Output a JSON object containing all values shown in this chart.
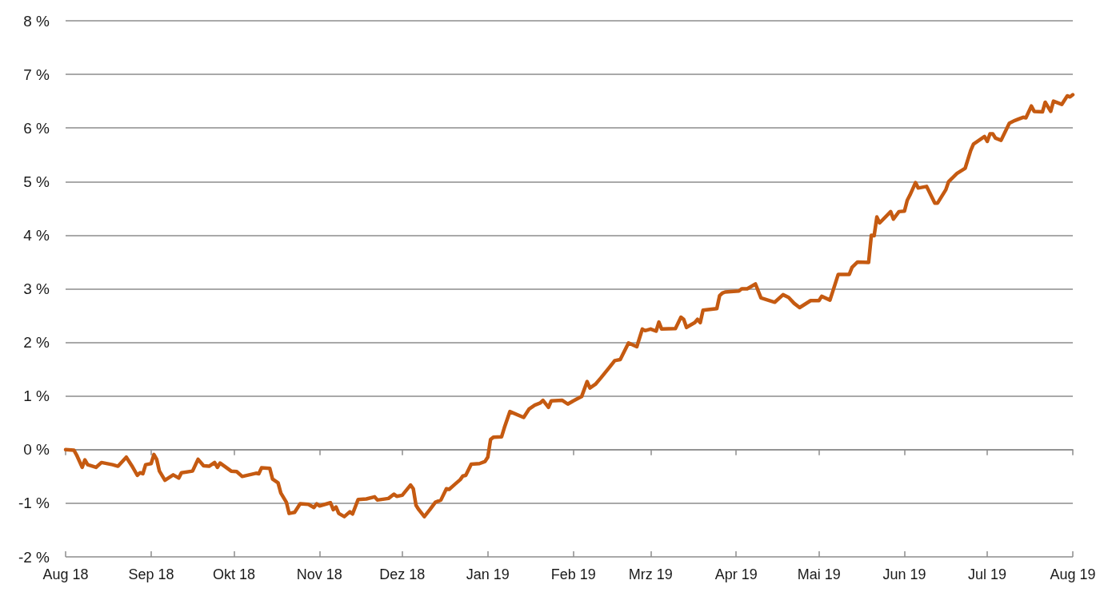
{
  "chart_data": {
    "type": "line",
    "color": "#c55a11",
    "x": [
      "2018-08-01",
      "2018-08-04",
      "2018-08-05",
      "2018-08-07",
      "2018-08-08",
      "2018-08-09",
      "2018-08-12",
      "2018-08-14",
      "2018-08-18",
      "2018-08-20",
      "2018-08-23",
      "2018-08-25",
      "2018-08-27",
      "2018-08-28",
      "2018-08-29",
      "2018-08-30",
      "2018-09-01",
      "2018-09-02",
      "2018-09-03",
      "2018-09-04",
      "2018-09-06",
      "2018-09-09",
      "2018-09-11",
      "2018-09-12",
      "2018-09-16",
      "2018-09-18",
      "2018-09-20",
      "2018-09-22",
      "2018-09-24",
      "2018-09-25",
      "2018-09-26",
      "2018-09-30",
      "2018-10-02",
      "2018-10-04",
      "2018-10-09",
      "2018-10-10",
      "2018-10-11",
      "2018-10-14",
      "2018-10-15",
      "2018-10-17",
      "2018-10-18",
      "2018-10-20",
      "2018-10-21",
      "2018-10-23",
      "2018-10-25",
      "2018-10-28",
      "2018-10-30",
      "2018-10-31",
      "2018-11-01",
      "2018-11-05",
      "2018-11-06",
      "2018-11-07",
      "2018-11-08",
      "2018-11-10",
      "2018-11-12",
      "2018-11-13",
      "2018-11-15",
      "2018-11-18",
      "2018-11-21",
      "2018-11-22",
      "2018-11-26",
      "2018-11-28",
      "2018-11-29",
      "2018-12-01",
      "2018-12-04",
      "2018-12-05",
      "2018-12-06",
      "2018-12-07",
      "2018-12-09",
      "2018-12-11",
      "2018-12-13",
      "2018-12-15",
      "2018-12-17",
      "2018-12-18",
      "2018-12-20",
      "2018-12-22",
      "2018-12-23",
      "2018-12-24",
      "2018-12-26",
      "2018-12-29",
      "2018-12-31",
      "2019-01-01",
      "2019-01-02",
      "2019-01-03",
      "2019-01-06",
      "2019-01-07",
      "2019-01-09",
      "2019-01-14",
      "2019-01-16",
      "2019-01-18",
      "2019-01-20",
      "2019-01-21",
      "2019-01-23",
      "2019-01-24",
      "2019-01-28",
      "2019-01-30",
      "2019-02-01",
      "2019-02-04",
      "2019-02-06",
      "2019-02-07",
      "2019-02-09",
      "2019-02-11",
      "2019-02-14",
      "2019-02-16",
      "2019-02-18",
      "2019-02-21",
      "2019-02-24",
      "2019-02-26",
      "2019-02-27",
      "2019-03-01",
      "2019-03-03",
      "2019-03-04",
      "2019-03-05",
      "2019-03-10",
      "2019-03-12",
      "2019-03-13",
      "2019-03-14",
      "2019-03-17",
      "2019-03-18",
      "2019-03-19",
      "2019-03-20",
      "2019-03-25",
      "2019-03-26",
      "2019-03-27",
      "2019-03-28",
      "2019-04-02",
      "2019-04-03",
      "2019-04-05",
      "2019-04-08",
      "2019-04-10",
      "2019-04-15",
      "2019-04-18",
      "2019-04-20",
      "2019-04-22",
      "2019-04-24",
      "2019-04-28",
      "2019-05-01",
      "2019-05-02",
      "2019-05-05",
      "2019-05-07",
      "2019-05-08",
      "2019-05-12",
      "2019-05-13",
      "2019-05-15",
      "2019-05-19",
      "2019-05-20",
      "2019-05-21",
      "2019-05-22",
      "2019-05-23",
      "2019-05-27",
      "2019-05-28",
      "2019-05-30",
      "2019-06-01",
      "2019-06-02",
      "2019-06-03",
      "2019-06-05",
      "2019-06-06",
      "2019-06-09",
      "2019-06-12",
      "2019-06-13",
      "2019-06-16",
      "2019-06-17",
      "2019-06-20",
      "2019-06-23",
      "2019-06-25",
      "2019-06-26",
      "2019-06-30",
      "2019-07-01",
      "2019-07-02",
      "2019-07-03",
      "2019-07-04",
      "2019-07-06",
      "2019-07-09",
      "2019-07-11",
      "2019-07-14",
      "2019-07-15",
      "2019-07-17",
      "2019-07-18",
      "2019-07-21",
      "2019-07-22",
      "2019-07-24",
      "2019-07-25",
      "2019-07-28",
      "2019-07-30",
      "2019-07-31",
      "2019-08-01"
    ],
    "values": [
      0,
      -0.01,
      -0.1,
      -0.33,
      -0.19,
      -0.28,
      -0.33,
      -0.24,
      -0.28,
      -0.31,
      -0.14,
      -0.3,
      -0.48,
      -0.43,
      -0.45,
      -0.28,
      -0.26,
      -0.09,
      -0.18,
      -0.4,
      -0.57,
      -0.47,
      -0.53,
      -0.43,
      -0.4,
      -0.18,
      -0.3,
      -0.31,
      -0.24,
      -0.33,
      -0.25,
      -0.4,
      -0.41,
      -0.5,
      -0.44,
      -0.45,
      -0.34,
      -0.35,
      -0.55,
      -0.62,
      -0.81,
      -0.98,
      -1.19,
      -1.17,
      -1.01,
      -1.02,
      -1.08,
      -1.01,
      -1.05,
      -0.99,
      -1.12,
      -1.07,
      -1.19,
      -1.25,
      -1.16,
      -1.2,
      -0.93,
      -0.92,
      -0.88,
      -0.94,
      -0.91,
      -0.83,
      -0.87,
      -0.85,
      -0.66,
      -0.73,
      -1.04,
      -1.12,
      -1.25,
      -1.12,
      -0.98,
      -0.94,
      -0.73,
      -0.74,
      -0.65,
      -0.56,
      -0.49,
      -0.48,
      -0.27,
      -0.26,
      -0.22,
      -0.14,
      0.19,
      0.23,
      0.24,
      0.41,
      0.71,
      0.6,
      0.76,
      0.83,
      0.87,
      0.92,
      0.79,
      0.91,
      0.92,
      0.85,
      0.91,
      0.99,
      1.27,
      1.15,
      1.22,
      1.34,
      1.53,
      1.66,
      1.68,
      1.99,
      1.92,
      2.25,
      2.22,
      2.25,
      2.21,
      2.38,
      2.25,
      2.26,
      2.47,
      2.43,
      2.28,
      2.37,
      2.43,
      2.37,
      2.6,
      2.63,
      2.87,
      2.92,
      2.94,
      2.96,
      3.0,
      3.0,
      3.09,
      2.83,
      2.75,
      2.89,
      2.84,
      2.73,
      2.65,
      2.78,
      2.78,
      2.86,
      2.79,
      3.11,
      3.27,
      3.27,
      3.4,
      3.5,
      3.49,
      4.0,
      3.99,
      4.34,
      4.23,
      4.44,
      4.3,
      4.44,
      4.45,
      4.65,
      4.75,
      4.98,
      4.88,
      4.91,
      4.6,
      4.6,
      4.85,
      5.0,
      5.15,
      5.25,
      5.58,
      5.7,
      5.84,
      5.75,
      5.89,
      5.89,
      5.81,
      5.77,
      6.09,
      6.14,
      6.2,
      6.19,
      6.41,
      6.31,
      6.3,
      6.48,
      6.31,
      6.5,
      6.44,
      6.6,
      6.58,
      6.62
    ],
    "xlim": [
      "2018-08-01",
      "2019-08-01"
    ],
    "xticks": [
      {
        "value": "2018-08-01",
        "label": "Aug 18"
      },
      {
        "value": "2018-09-01",
        "label": "Sep 18"
      },
      {
        "value": "2018-10-01",
        "label": "Okt 18"
      },
      {
        "value": "2018-11-01",
        "label": "Nov 18"
      },
      {
        "value": "2018-12-01",
        "label": "Dez 18"
      },
      {
        "value": "2019-01-01",
        "label": "Jan 19"
      },
      {
        "value": "2019-02-01",
        "label": "Feb 19"
      },
      {
        "value": "2019-03-01",
        "label": "Mrz 19"
      },
      {
        "value": "2019-04-01",
        "label": "Apr 19"
      },
      {
        "value": "2019-05-01",
        "label": "Mai 19"
      },
      {
        "value": "2019-06-01",
        "label": "Jun 19"
      },
      {
        "value": "2019-07-01",
        "label": "Jul 19"
      },
      {
        "value": "2019-08-01",
        "label": "Aug 19"
      }
    ],
    "ylim": [
      -2,
      8
    ],
    "yticks": [
      {
        "value": -2,
        "label": "-2 %"
      },
      {
        "value": -1,
        "label": "-1 %"
      },
      {
        "value": 0,
        "label": "0 %"
      },
      {
        "value": 1,
        "label": "1 %"
      },
      {
        "value": 2,
        "label": "2 %"
      },
      {
        "value": 3,
        "label": "3 %"
      },
      {
        "value": 4,
        "label": "4 %"
      },
      {
        "value": 5,
        "label": "5 %"
      },
      {
        "value": 6,
        "label": "6 %"
      },
      {
        "value": 7,
        "label": "7 %"
      },
      {
        "value": 8,
        "label": "8 %"
      }
    ],
    "grid": "y"
  }
}
